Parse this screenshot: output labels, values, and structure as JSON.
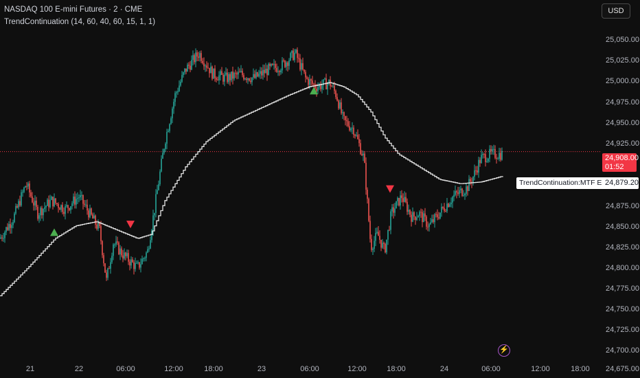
{
  "header": {
    "symbol_line": "NASDAQ 100 E-mini Futures · 2 · CME",
    "indicator_line": "TrendContinuation (14, 60, 40, 60, 15, 1, 1)"
  },
  "currency_button": "USD",
  "y_axis": {
    "labels": [
      "25,050.00",
      "25,025.00",
      "25,000.00",
      "24,975.00",
      "24,950.00",
      "24,925.00",
      "24,875.00",
      "24,850.00",
      "24,825.00",
      "24,800.00",
      "24,775.00",
      "24,750.00",
      "24,725.00",
      "24,700.00",
      "24,675.00"
    ]
  },
  "x_axis": {
    "labels": [
      "21",
      "22",
      "06:00",
      "12:00",
      "18:00",
      "23",
      "06:00",
      "12:00",
      "18:00",
      "24",
      "06:00",
      "12:00",
      "18:00"
    ]
  },
  "price_tag": {
    "price": "24,908.00",
    "countdown": "01:52"
  },
  "ema_tag": {
    "value": "24,879.20",
    "name": "TrendContinuation:MTF EMA"
  },
  "colors": {
    "background": "#0f0f0f",
    "up": "#26a69a",
    "down": "#ef5350",
    "ema": "#e6e6e6",
    "buy_signal": "#4caf50",
    "sell_signal": "#f23645"
  },
  "chart_data": {
    "type": "candlestick",
    "ylim": [
      24668,
      25070
    ],
    "current_price": 24908,
    "ema_value": 24879.2,
    "price_path": [
      [
        0,
        24805
      ],
      [
        20,
        24830
      ],
      [
        38,
        24870
      ],
      [
        55,
        24835
      ],
      [
        75,
        24850
      ],
      [
        95,
        24840
      ],
      [
        115,
        24855
      ],
      [
        130,
        24835
      ],
      [
        145,
        24815
      ],
      [
        155,
        24755
      ],
      [
        165,
        24800
      ],
      [
        180,
        24785
      ],
      [
        200,
        24770
      ],
      [
        215,
        24790
      ],
      [
        225,
        24840
      ],
      [
        240,
        24920
      ],
      [
        255,
        24975
      ],
      [
        270,
        25005
      ],
      [
        290,
        25025
      ],
      [
        310,
        25000
      ],
      [
        330,
        24995
      ],
      [
        350,
        25000
      ],
      [
        370,
        24995
      ],
      [
        390,
        25005
      ],
      [
        410,
        25010
      ],
      [
        430,
        25025
      ],
      [
        445,
        24995
      ],
      [
        460,
        24985
      ],
      [
        480,
        24990
      ],
      [
        490,
        24975
      ],
      [
        500,
        24945
      ],
      [
        515,
        24935
      ],
      [
        530,
        24900
      ],
      [
        540,
        24795
      ],
      [
        550,
        24810
      ],
      [
        560,
        24790
      ],
      [
        570,
        24835
      ],
      [
        585,
        24855
      ],
      [
        600,
        24830
      ],
      [
        610,
        24835
      ],
      [
        625,
        24820
      ],
      [
        640,
        24835
      ],
      [
        660,
        24855
      ],
      [
        680,
        24865
      ],
      [
        690,
        24880
      ],
      [
        700,
        24900
      ],
      [
        715,
        24905
      ],
      [
        730,
        24905
      ]
    ],
    "ema_path": [
      [
        0,
        24737
      ],
      [
        40,
        24770
      ],
      [
        80,
        24805
      ],
      [
        110,
        24820
      ],
      [
        140,
        24825
      ],
      [
        170,
        24815
      ],
      [
        200,
        24805
      ],
      [
        220,
        24810
      ],
      [
        240,
        24850
      ],
      [
        270,
        24890
      ],
      [
        300,
        24920
      ],
      [
        340,
        24945
      ],
      [
        380,
        24960
      ],
      [
        420,
        24975
      ],
      [
        450,
        24985
      ],
      [
        480,
        24990
      ],
      [
        500,
        24985
      ],
      [
        520,
        24975
      ],
      [
        540,
        24955
      ],
      [
        560,
        24925
      ],
      [
        580,
        24905
      ],
      [
        610,
        24890
      ],
      [
        640,
        24875
      ],
      [
        670,
        24870
      ],
      [
        700,
        24872
      ],
      [
        732,
        24879
      ]
    ],
    "buy_signals": [
      [
        79,
        24812
      ],
      [
        457,
        24980
      ]
    ],
    "sell_signals": [
      [
        190,
        24822
      ],
      [
        568,
        24864
      ]
    ]
  }
}
